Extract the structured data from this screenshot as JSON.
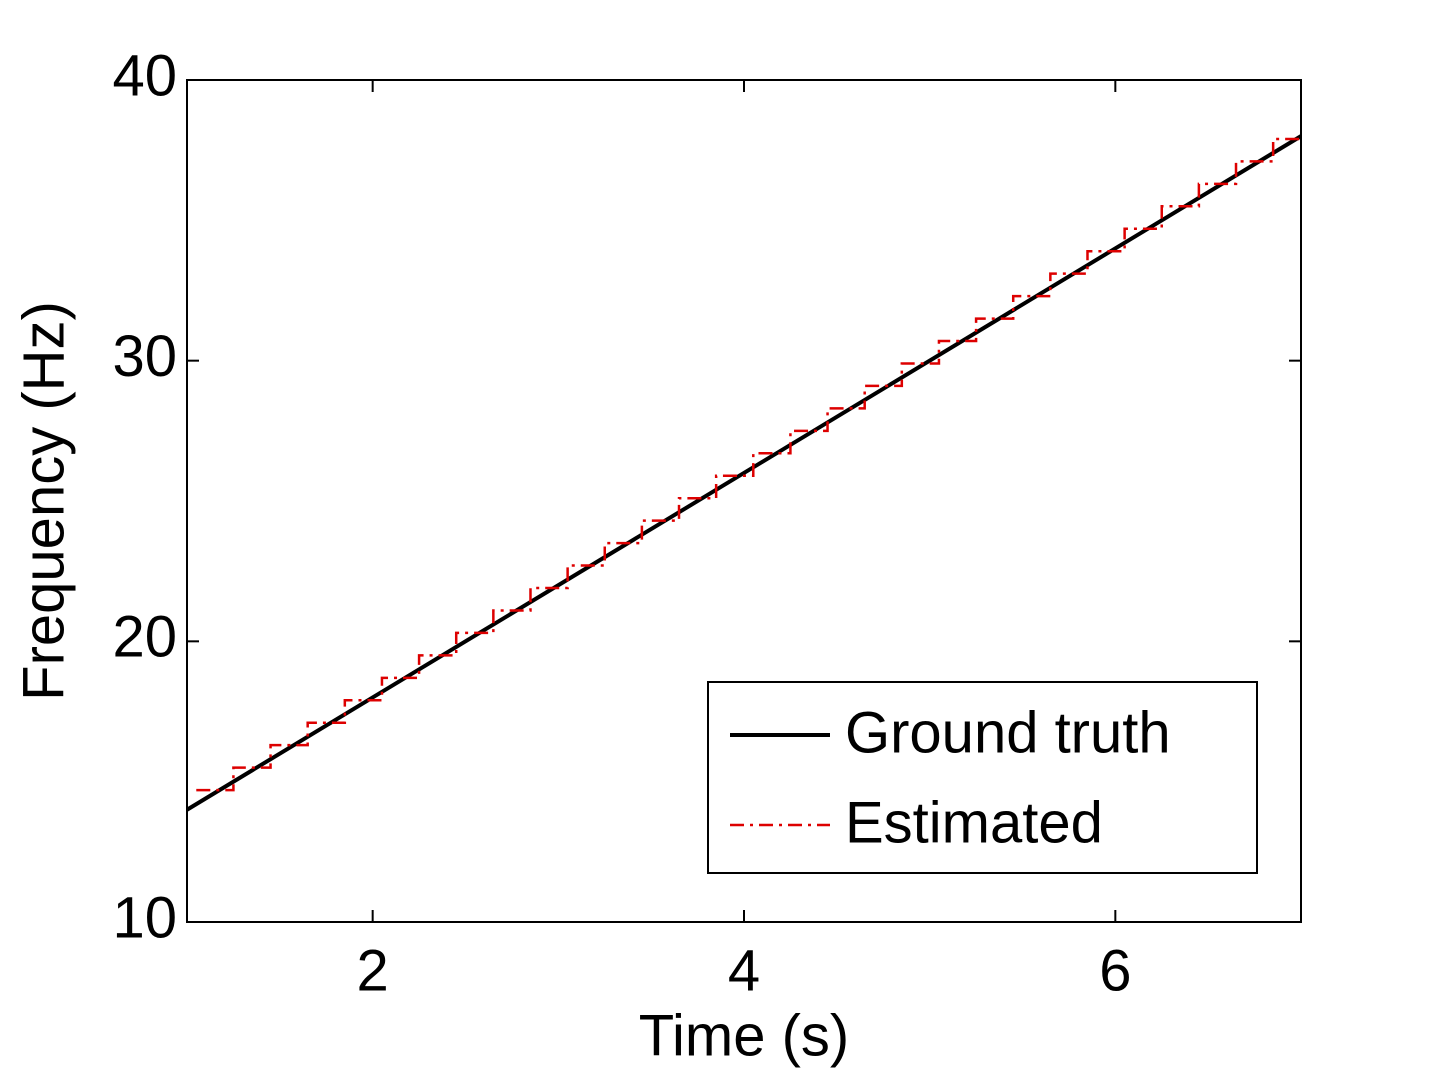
{
  "chart_data": {
    "type": "line",
    "xlabel": "Time (s)",
    "ylabel": "Frequency (Hz)",
    "xlim": [
      1,
      7
    ],
    "ylim": [
      10,
      40
    ],
    "xticks": [
      2,
      4,
      6
    ],
    "yticks": [
      10,
      20,
      30,
      40
    ],
    "legend": "lower right",
    "series": [
      {
        "name": "Ground truth",
        "color": "#000000",
        "linestyle": "solid",
        "drawstyle": "default",
        "x": [
          1,
          7
        ],
        "values": [
          14,
          38
        ]
      },
      {
        "name": "Estimated",
        "color": "#dd0000",
        "linestyle": "dashdot",
        "drawstyle": "steps-post",
        "x": [
          1.05,
          1.25,
          1.45,
          1.65,
          1.85,
          2.05,
          2.25,
          2.45,
          2.65,
          2.85,
          3.05,
          3.25,
          3.45,
          3.65,
          3.85,
          4.05,
          4.25,
          4.45,
          4.65,
          4.85,
          5.05,
          5.25,
          5.45,
          5.65,
          5.85,
          6.05,
          6.25,
          6.45,
          6.65,
          6.85,
          7.0
        ],
        "values": [
          14.7,
          15.5,
          16.3,
          17.1,
          17.9,
          18.7,
          19.5,
          20.3,
          21.1,
          21.9,
          22.7,
          23.5,
          24.3,
          25.1,
          25.9,
          26.7,
          27.5,
          28.3,
          29.1,
          29.9,
          30.7,
          31.5,
          32.3,
          33.1,
          33.9,
          34.7,
          35.5,
          36.3,
          37.1,
          37.9,
          37.9
        ]
      }
    ]
  }
}
